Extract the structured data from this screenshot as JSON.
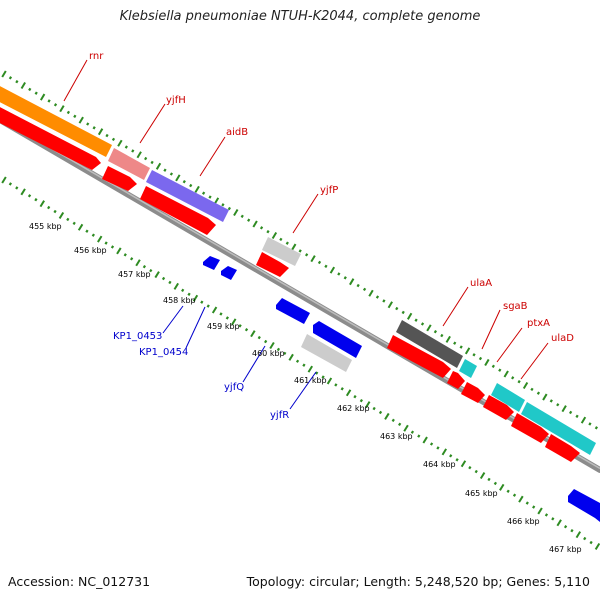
{
  "title": "Klebsiella pneumoniae NTUH-K2044, complete genome",
  "footer": {
    "accession": "Accession: NC_012731",
    "summary": "Topology: circular; Length: 5,248,520 bp; Genes: 5,110"
  },
  "colors": {
    "backbone": "#8c8c8c",
    "tick": "#2e8b22",
    "forward_label": "#cc0000",
    "reverse_label": "#0000cc",
    "cds": "#ff0000",
    "blue_feature": "#0000ee",
    "orange": "#ff8c00",
    "pink": "#ee8888",
    "purple": "#7b68ee",
    "light_gray": "#cccccc",
    "dark_gray": "#555555",
    "cyan": "#20c8c8"
  },
  "kbp_labels": [
    "455 kbp",
    "456 kbp",
    "457 kbp",
    "458 kbp",
    "459 kbp",
    "460 kbp",
    "461 kbp",
    "462 kbp",
    "463 kbp",
    "464 kbp",
    "465 kbp",
    "466 kbp",
    "467 kbp"
  ],
  "gene_labels": {
    "rnr": "rnr",
    "yjfH": "yjfH",
    "aidB": "aidB",
    "yjfP": "yjfP",
    "ulaA": "ulaA",
    "sgaB": "sgaB",
    "ptxA": "ptxA",
    "ulaD": "ulaD",
    "KP1_0453": "KP1_0453",
    "KP1_0454": "KP1_0454",
    "yjfQ": "yjfQ",
    "yjfR": "yjfR"
  }
}
